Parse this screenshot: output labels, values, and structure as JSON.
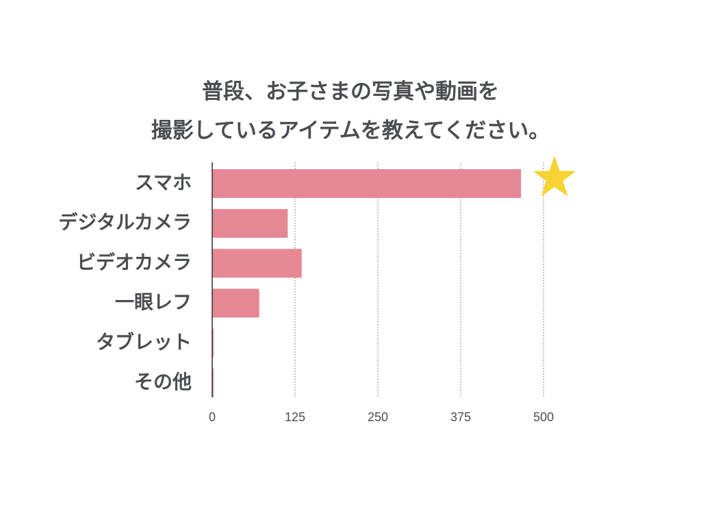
{
  "chart_data": {
    "type": "bar",
    "orientation": "horizontal",
    "title_lines": [
      "普段、お子さまの写真や動画を",
      "撮影しているアイテムを教えてください。"
    ],
    "categories": [
      "スマホ",
      "デジタルカメラ",
      "ビデオカメラ",
      "一眼レフ",
      "タブレット",
      "その他"
    ],
    "values": [
      466,
      114,
      135,
      71,
      1,
      1
    ],
    "xlim": [
      0,
      500
    ],
    "x_ticks": [
      "0",
      "125",
      "250",
      "375",
      "500"
    ],
    "x_tick_values": [
      0,
      125,
      250,
      375,
      500
    ],
    "grid": "vertical-dotted",
    "legend": "none",
    "highlight": {
      "category": "スマホ",
      "marker": "star-icon",
      "color": "#f7d333"
    },
    "colors": {
      "bar": "#e58893",
      "axis": "#2e2e2e",
      "grid": "#8a8a8a",
      "text": "#4a4d52"
    }
  }
}
